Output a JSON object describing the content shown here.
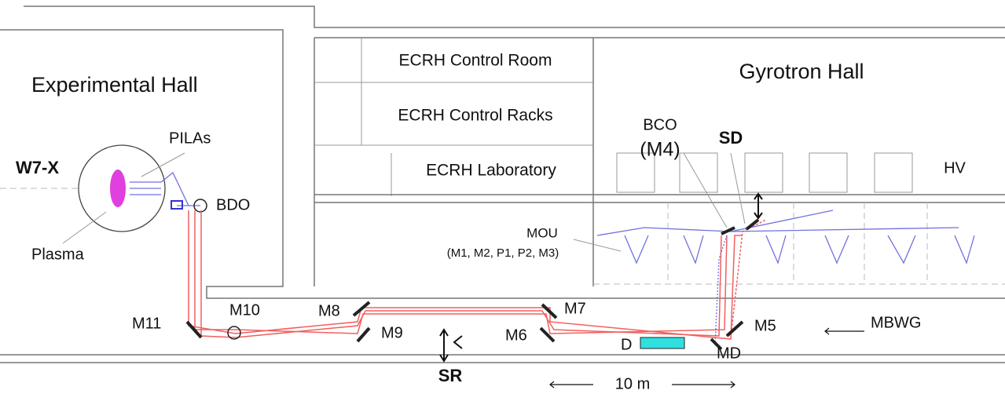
{
  "rooms": [
    "Experimental Hall",
    "ECRH Control Room",
    "ECRH Control Racks",
    "ECRH Laboratory",
    "Gyrotron Hall"
  ],
  "labels": {
    "device": "W7-X",
    "pilas": "PILAs",
    "bdo": "BDO",
    "plasma": "Plasma",
    "bco": "BCO",
    "m4": "(M4)",
    "sd": "SD",
    "hv": "HV",
    "mou": "MOU",
    "mou_parts": "(M1, M2, P1, P2, M3)",
    "m10": "M10",
    "m11": "M11",
    "m8": "M8",
    "m9": "M9",
    "m7": "M7",
    "m6": "M6",
    "m5": "M5",
    "mbwg": "MBWG",
    "d": "D",
    "md": "MD",
    "sr": "SR",
    "scale": "10 m"
  }
}
